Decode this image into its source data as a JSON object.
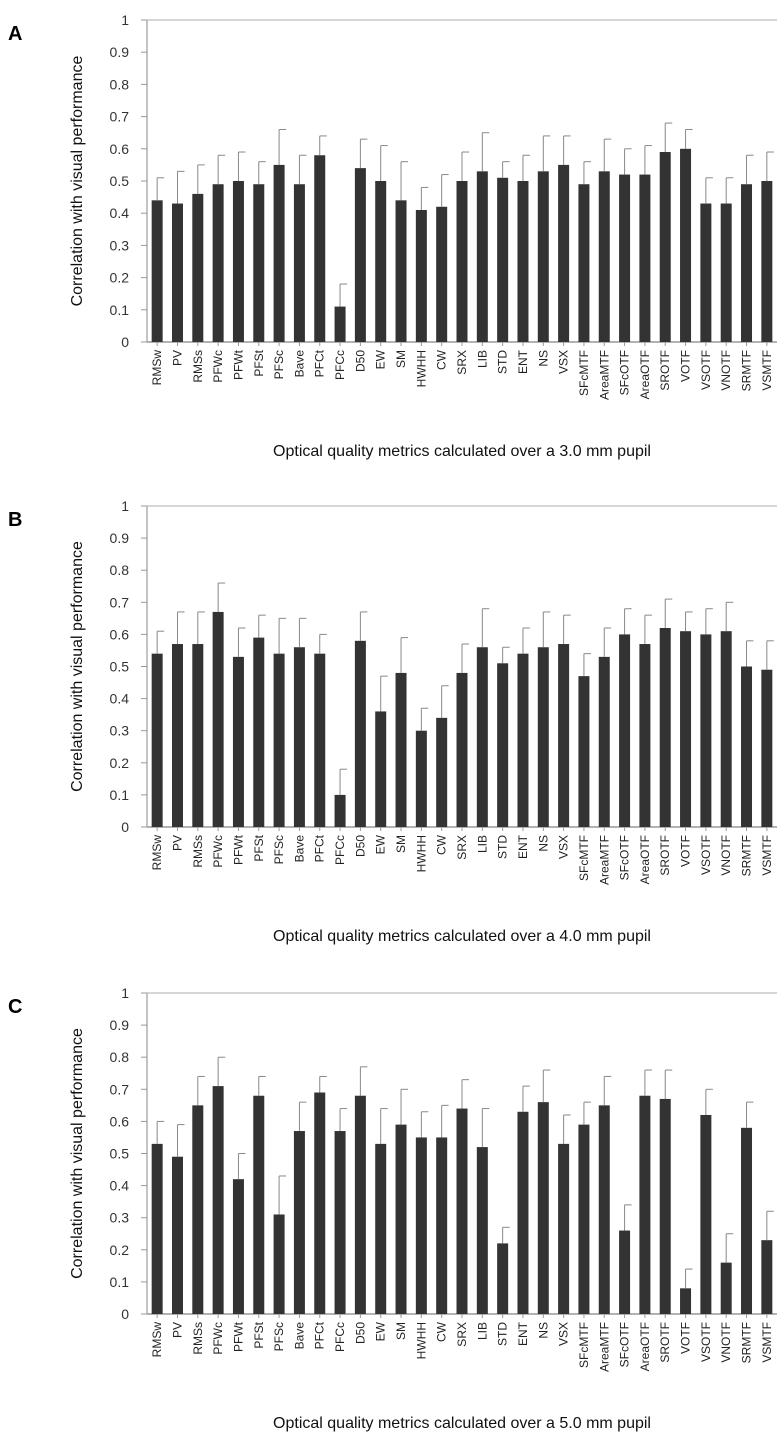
{
  "chart_data": [
    {
      "type": "bar",
      "panel_label": "A",
      "xlabel": "Optical quality metrics calculated over a 3.0 mm pupil",
      "ylabel": "Correlation with visual performance",
      "ylim": [
        0,
        1
      ],
      "yticks": [
        "0",
        "0.1",
        "0.2",
        "0.3",
        "0.4",
        "0.5",
        "0.6",
        "0.7",
        "0.8",
        "0.9",
        "1"
      ],
      "grid": false,
      "bar_color": "#333333",
      "categories": [
        "RMSw",
        "PV",
        "RMSs",
        "PFWc",
        "PFWt",
        "PFSt",
        "PFSc",
        "Bave",
        "PFCt",
        "PFCc",
        "D50",
        "EW",
        "SM",
        "HWHH",
        "CW",
        "SRX",
        "LIB",
        "STD",
        "ENT",
        "NS",
        "VSX",
        "SFcMTF",
        "AreaMTF",
        "SFcOTF",
        "AreaOTF",
        "SROTF",
        "VOTF",
        "VSOTF",
        "VNOTF",
        "SRMTF",
        "VSMTF"
      ],
      "values": [
        0.44,
        0.43,
        0.46,
        0.49,
        0.5,
        0.49,
        0.55,
        0.49,
        0.58,
        0.11,
        0.54,
        0.5,
        0.44,
        0.41,
        0.42,
        0.5,
        0.53,
        0.51,
        0.5,
        0.53,
        0.55,
        0.49,
        0.53,
        0.52,
        0.52,
        0.59,
        0.6,
        0.43,
        0.43,
        0.49,
        0.5
      ],
      "error": [
        0.07,
        0.1,
        0.09,
        0.09,
        0.09,
        0.07,
        0.11,
        0.09,
        0.06,
        0.07,
        0.09,
        0.11,
        0.12,
        0.07,
        0.1,
        0.09,
        0.12,
        0.05,
        0.08,
        0.11,
        0.09,
        0.07,
        0.1,
        0.08,
        0.09,
        0.09,
        0.06,
        0.08,
        0.08,
        0.09,
        0.09
      ]
    },
    {
      "type": "bar",
      "panel_label": "B",
      "xlabel": "Optical quality metrics calculated over a 4.0 mm pupil",
      "ylabel": "Correlation with visual performance",
      "ylim": [
        0,
        1
      ],
      "yticks": [
        "0",
        "0.1",
        "0.2",
        "0.3",
        "0.4",
        "0.5",
        "0.6",
        "0.7",
        "0.8",
        "0.9",
        "1"
      ],
      "grid": false,
      "bar_color": "#333333",
      "categories": [
        "RMSw",
        "PV",
        "RMSs",
        "PFWc",
        "PFWt",
        "PFSt",
        "PFSc",
        "Bave",
        "PFCt",
        "PFCc",
        "D50",
        "EW",
        "SM",
        "HWHH",
        "CW",
        "SRX",
        "LIB",
        "STD",
        "ENT",
        "NS",
        "VSX",
        "SFcMTF",
        "AreaMTF",
        "SFcOTF",
        "AreaOTF",
        "SROTF",
        "VOTF",
        "VSOTF",
        "VNOTF",
        "SRMTF",
        "VSMTF"
      ],
      "values": [
        0.54,
        0.57,
        0.57,
        0.67,
        0.53,
        0.59,
        0.54,
        0.56,
        0.54,
        0.1,
        0.58,
        0.36,
        0.48,
        0.3,
        0.34,
        0.48,
        0.56,
        0.51,
        0.54,
        0.56,
        0.57,
        0.47,
        0.53,
        0.6,
        0.57,
        0.62,
        0.61,
        0.6,
        0.61,
        0.5,
        0.49
      ],
      "error": [
        0.07,
        0.1,
        0.1,
        0.09,
        0.09,
        0.07,
        0.11,
        0.09,
        0.06,
        0.08,
        0.09,
        0.11,
        0.11,
        0.07,
        0.1,
        0.09,
        0.12,
        0.05,
        0.08,
        0.11,
        0.09,
        0.07,
        0.09,
        0.08,
        0.09,
        0.09,
        0.06,
        0.08,
        0.09,
        0.08,
        0.09
      ]
    },
    {
      "type": "bar",
      "panel_label": "C",
      "xlabel": "Optical quality metrics calculated over a 5.0 mm pupil",
      "ylabel": "Correlation with visual performance",
      "ylim": [
        0,
        1
      ],
      "yticks": [
        "0",
        "0.1",
        "0.2",
        "0.3",
        "0.4",
        "0.5",
        "0.6",
        "0.7",
        "0.8",
        "0.9",
        "1"
      ],
      "grid": false,
      "bar_color": "#333333",
      "categories": [
        "RMSw",
        "PV",
        "RMSs",
        "PFWc",
        "PFWt",
        "PFSt",
        "PFSc",
        "Bave",
        "PFCt",
        "PFCc",
        "D50",
        "EW",
        "SM",
        "HWHH",
        "CW",
        "SRX",
        "LIB",
        "STD",
        "ENT",
        "NS",
        "VSX",
        "SFcMTF",
        "AreaMTF",
        "SFcOTF",
        "AreaOTF",
        "SROTF",
        "VOTF",
        "VSOTF",
        "VNOTF",
        "SRMTF",
        "VSMTF"
      ],
      "values": [
        0.53,
        0.49,
        0.65,
        0.71,
        0.42,
        0.68,
        0.31,
        0.57,
        0.69,
        0.57,
        0.68,
        0.53,
        0.59,
        0.55,
        0.55,
        0.64,
        0.52,
        0.22,
        0.63,
        0.66,
        0.53,
        0.59,
        0.65,
        0.26,
        0.68,
        0.67,
        0.08,
        0.62,
        0.16,
        0.58,
        0.23
      ],
      "error": [
        0.07,
        0.1,
        0.09,
        0.09,
        0.08,
        0.06,
        0.12,
        0.09,
        0.05,
        0.07,
        0.09,
        0.11,
        0.11,
        0.08,
        0.1,
        0.09,
        0.12,
        0.05,
        0.08,
        0.1,
        0.09,
        0.07,
        0.09,
        0.08,
        0.08,
        0.09,
        0.06,
        0.08,
        0.09,
        0.08,
        0.09
      ]
    }
  ]
}
